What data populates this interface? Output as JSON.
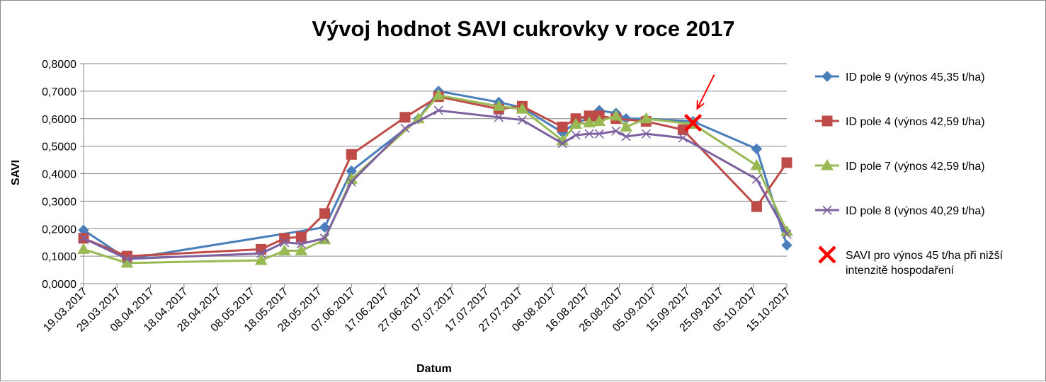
{
  "chart_data": {
    "type": "line",
    "title": "Vývoj hodnot SAVI cukrovky v roce 2017",
    "xlabel": "Datum",
    "ylabel": "SAVI",
    "ylim": [
      0,
      0.8
    ],
    "yticks": [
      "0,0000",
      "0,1000",
      "0,2000",
      "0,3000",
      "0,4000",
      "0,5000",
      "0,6000",
      "0,7000",
      "0,8000"
    ],
    "x_tick_labels": [
      "19.03.2017",
      "29.03.2017",
      "08.04.2017",
      "18.04.2017",
      "28.04.2017",
      "08.05.2017",
      "18.05.2017",
      "28.05.2017",
      "07.06.2017",
      "17.06.2017",
      "27.06.2017",
      "07.07.2017",
      "17.07.2017",
      "27.07.2017",
      "06.08.2017",
      "16.08.2017",
      "26.08.2017",
      "05.09.2017",
      "15.09.2017",
      "25.09.2017",
      "05.10.2017",
      "15.10.2017"
    ],
    "grid": "horizontal",
    "legend_position": "right",
    "series": [
      {
        "name": "ID pole 9 (výnos 45,35 t/ha)",
        "color": "#4a7ebb",
        "marker": "diamond",
        "points": [
          [
            "2017-03-19",
            0.195
          ],
          [
            "2017-04-01",
            0.09
          ],
          [
            "2017-05-30",
            0.205
          ],
          [
            "2017-06-07",
            0.41
          ],
          [
            "2017-06-27",
            0.6
          ],
          [
            "2017-07-03",
            0.7
          ],
          [
            "2017-07-21",
            0.66
          ],
          [
            "2017-07-28",
            0.64
          ],
          [
            "2017-08-09",
            0.55
          ],
          [
            "2017-08-13",
            0.585
          ],
          [
            "2017-08-17",
            0.6
          ],
          [
            "2017-08-20",
            0.63
          ],
          [
            "2017-08-25",
            0.62
          ],
          [
            "2017-08-28",
            0.6
          ],
          [
            "2017-09-03",
            0.6
          ],
          [
            "2017-09-17",
            0.59
          ],
          [
            "2017-10-06",
            0.49
          ],
          [
            "2017-10-15",
            0.14
          ]
        ]
      },
      {
        "name": "ID pole 4 (výnos 42,59 t/ha)",
        "color": "#be4b48",
        "marker": "square",
        "points": [
          [
            "2017-03-19",
            0.165
          ],
          [
            "2017-04-01",
            0.1
          ],
          [
            "2017-05-11",
            0.125
          ],
          [
            "2017-05-18",
            0.165
          ],
          [
            "2017-05-23",
            0.17
          ],
          [
            "2017-05-30",
            0.255
          ],
          [
            "2017-06-07",
            0.47
          ],
          [
            "2017-06-23",
            0.605
          ],
          [
            "2017-07-03",
            0.68
          ],
          [
            "2017-07-21",
            0.635
          ],
          [
            "2017-07-28",
            0.645
          ],
          [
            "2017-08-09",
            0.57
          ],
          [
            "2017-08-13",
            0.6
          ],
          [
            "2017-08-17",
            0.61
          ],
          [
            "2017-08-20",
            0.61
          ],
          [
            "2017-08-25",
            0.6
          ],
          [
            "2017-09-03",
            0.59
          ],
          [
            "2017-09-14",
            0.56
          ],
          [
            "2017-10-06",
            0.28
          ],
          [
            "2017-10-15",
            0.44
          ]
        ]
      },
      {
        "name": "ID pole 7 (výnos 42,59 t/ha)",
        "color": "#98b954",
        "marker": "triangle",
        "points": [
          [
            "2017-03-19",
            0.125
          ],
          [
            "2017-04-01",
            0.075
          ],
          [
            "2017-05-11",
            0.085
          ],
          [
            "2017-05-18",
            0.12
          ],
          [
            "2017-05-23",
            0.12
          ],
          [
            "2017-05-30",
            0.16
          ],
          [
            "2017-06-07",
            0.38
          ],
          [
            "2017-06-27",
            0.6
          ],
          [
            "2017-07-03",
            0.685
          ],
          [
            "2017-07-21",
            0.645
          ],
          [
            "2017-07-28",
            0.635
          ],
          [
            "2017-08-09",
            0.52
          ],
          [
            "2017-08-13",
            0.58
          ],
          [
            "2017-08-17",
            0.585
          ],
          [
            "2017-08-20",
            0.59
          ],
          [
            "2017-08-25",
            0.61
          ],
          [
            "2017-08-28",
            0.57
          ],
          [
            "2017-09-03",
            0.6
          ],
          [
            "2017-09-17",
            0.58
          ],
          [
            "2017-10-06",
            0.43
          ],
          [
            "2017-10-15",
            0.19
          ]
        ]
      },
      {
        "name": "ID pole 8 (výnos 40,29 t/ha)",
        "color": "#7d60a0",
        "marker": "x",
        "points": [
          [
            "2017-03-19",
            0.165
          ],
          [
            "2017-04-01",
            0.09
          ],
          [
            "2017-05-11",
            0.11
          ],
          [
            "2017-05-18",
            0.15
          ],
          [
            "2017-05-23",
            0.145
          ],
          [
            "2017-05-30",
            0.165
          ],
          [
            "2017-06-07",
            0.37
          ],
          [
            "2017-06-23",
            0.565
          ],
          [
            "2017-07-03",
            0.63
          ],
          [
            "2017-07-21",
            0.605
          ],
          [
            "2017-07-28",
            0.595
          ],
          [
            "2017-08-09",
            0.51
          ],
          [
            "2017-08-13",
            0.54
          ],
          [
            "2017-08-17",
            0.545
          ],
          [
            "2017-08-20",
            0.545
          ],
          [
            "2017-08-25",
            0.555
          ],
          [
            "2017-08-28",
            0.535
          ],
          [
            "2017-09-03",
            0.545
          ],
          [
            "2017-09-14",
            0.53
          ],
          [
            "2017-10-06",
            0.38
          ],
          [
            "2017-10-15",
            0.18
          ]
        ]
      },
      {
        "name": "SAVI pro výnos 45 t/ha při nižší intenzitě hospodaření",
        "name_lines": [
          "SAVI pro výnos 45 t/ha při nižší",
          "intenzitě hospodaření"
        ],
        "color": "#ff0000",
        "marker": "x-bold",
        "points": [
          [
            "2017-09-17",
            0.585
          ]
        ]
      }
    ],
    "annotations": [
      {
        "type": "arrow",
        "color": "#ff0000",
        "points_to": [
          "2017-09-17",
          0.585
        ]
      }
    ]
  }
}
